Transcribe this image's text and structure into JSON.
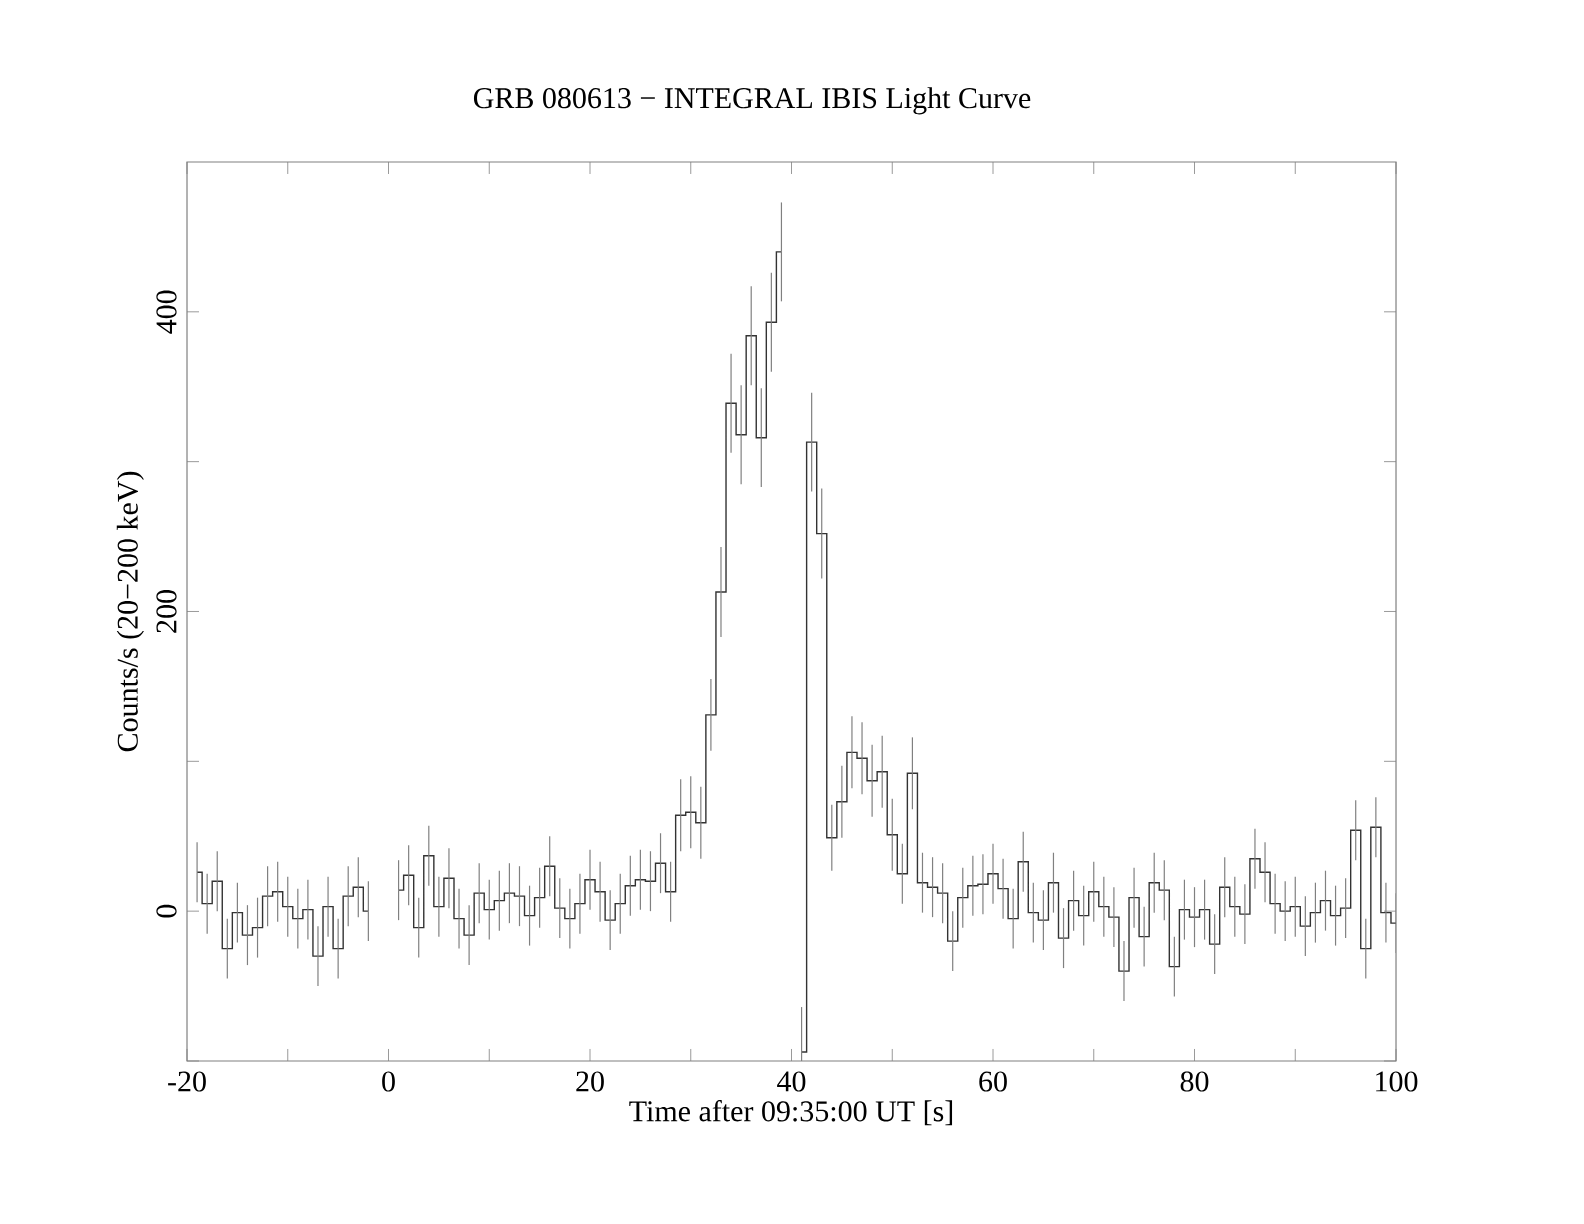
{
  "chart_data": {
    "type": "step",
    "title": "GRB 080613 − INTEGRAL IBIS Light Curve",
    "xlabel": "Time after 09:35:00 UT [s]",
    "ylabel": "Counts/s (20−200 keV)",
    "color": "#333333",
    "x": [
      -19,
      -18,
      -17,
      -16,
      -15,
      -14,
      -13,
      -12,
      -11,
      -10,
      -9,
      -8,
      -7,
      -6,
      -5,
      -4,
      -3,
      -2,
      -1,
      0,
      1,
      2,
      3,
      4,
      5,
      6,
      7,
      8,
      9,
      10,
      11,
      12,
      13,
      14,
      15,
      16,
      17,
      18,
      19,
      20,
      21,
      22,
      23,
      24,
      25,
      26,
      27,
      28,
      29,
      30,
      31,
      32,
      33,
      34,
      35,
      36,
      37,
      38,
      39,
      40,
      41,
      42,
      43,
      44,
      45,
      46,
      47,
      48,
      49,
      50,
      51,
      52,
      53,
      54,
      55,
      56,
      57,
      58,
      59,
      60,
      61,
      62,
      63,
      64,
      65,
      66,
      67,
      68,
      69,
      70,
      71,
      72,
      73,
      74,
      75,
      76,
      77,
      78,
      79,
      80,
      81,
      82,
      83,
      84,
      85,
      86,
      87,
      88,
      89,
      90,
      91,
      92,
      93,
      94,
      95,
      96,
      97,
      98,
      99,
      100
    ],
    "values": [
      26,
      5,
      20,
      -25,
      -1,
      -16,
      -11,
      10,
      13,
      3,
      -5,
      1,
      -30,
      3,
      -25,
      10,
      16,
      0,
      null,
      null,
      14,
      24,
      -11,
      37,
      3,
      22,
      -5,
      -16,
      12,
      1,
      7,
      12,
      10,
      -3,
      9,
      30,
      2,
      -5,
      5,
      21,
      13,
      -6,
      5,
      17,
      21,
      20,
      32,
      13,
      64,
      66,
      59,
      131,
      213,
      339,
      318,
      384,
      316,
      393,
      440,
      null,
      -94,
      313,
      252,
      49,
      73,
      106,
      102,
      87,
      93,
      51,
      25,
      92,
      19,
      16,
      12,
      -20,
      9,
      17,
      18,
      25,
      15,
      -5,
      33,
      -1,
      -6,
      19,
      -18,
      7,
      -3,
      13,
      3,
      -4,
      -40,
      9,
      -17,
      19,
      14,
      -37,
      1,
      -4,
      1,
      -22,
      16,
      3,
      -2,
      35,
      26,
      5,
      0,
      3,
      -10,
      -1,
      7,
      -3,
      2,
      54,
      -25,
      56,
      -1,
      -8
    ],
    "errors": [
      20,
      20,
      20,
      20,
      20,
      20,
      20,
      20,
      20,
      20,
      20,
      20,
      20,
      20,
      20,
      20,
      20,
      20,
      null,
      null,
      20,
      20,
      20,
      20,
      20,
      20,
      20,
      20,
      20,
      20,
      20,
      20,
      20,
      20,
      20,
      20,
      20,
      20,
      20,
      20,
      20,
      20,
      20,
      20,
      20,
      20,
      20,
      20,
      24,
      24,
      24,
      24,
      30,
      33,
      33,
      33,
      33,
      33,
      33,
      null,
      30,
      33,
      30,
      22,
      24,
      24,
      24,
      24,
      24,
      24,
      20,
      24,
      20,
      20,
      20,
      20,
      20,
      20,
      20,
      20,
      20,
      20,
      20,
      20,
      20,
      20,
      20,
      20,
      20,
      20,
      20,
      20,
      20,
      20,
      20,
      20,
      20,
      20,
      20,
      20,
      20,
      20,
      20,
      20,
      20,
      20,
      20,
      20,
      20,
      20,
      20,
      20,
      20,
      20,
      20,
      20,
      20,
      20,
      20,
      20
    ],
    "xlim": [
      -20,
      100
    ],
    "xticks": [
      -20,
      {
        "value": -10,
        "label": null
      },
      0,
      {
        "value": 10,
        "label": null
      },
      20,
      {
        "value": 30,
        "label": null
      },
      40,
      {
        "value": 50,
        "label": null
      },
      60,
      {
        "value": 70,
        "label": null
      },
      80,
      {
        "value": 90,
        "label": null
      },
      100
    ],
    "ylim": [
      -100,
      500
    ],
    "yticks": [
      {
        "value": -100,
        "label": null
      },
      0,
      {
        "value": 100,
        "label": null
      },
      200,
      {
        "value": 300,
        "label": null
      },
      400
    ],
    "grid": false
  }
}
